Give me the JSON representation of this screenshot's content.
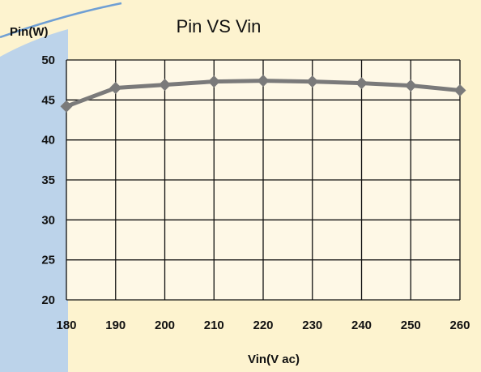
{
  "colors": {
    "background": "#fdf3cf",
    "slide_accent": "#bcd3ea",
    "slide_accent_line": "#6f9fd4",
    "plot_area": "#fef8e6",
    "gridline": "#111111",
    "series": "#7a7a7a"
  },
  "chart_data": {
    "type": "line",
    "title": "Pin VS Vin",
    "xlabel": "Vin(V ac)",
    "ylabel": "Pin(W)",
    "x": [
      180,
      190,
      200,
      210,
      220,
      230,
      240,
      250,
      260
    ],
    "y_ticks": [
      20,
      25,
      30,
      35,
      40,
      45,
      50
    ],
    "xlim": [
      180,
      260
    ],
    "ylim": [
      20,
      50
    ],
    "grid": true,
    "marker": "diamond",
    "series": [
      {
        "values": [
          44.2,
          46.5,
          46.9,
          47.3,
          47.4,
          47.3,
          47.1,
          46.8,
          46.2
        ]
      }
    ]
  }
}
